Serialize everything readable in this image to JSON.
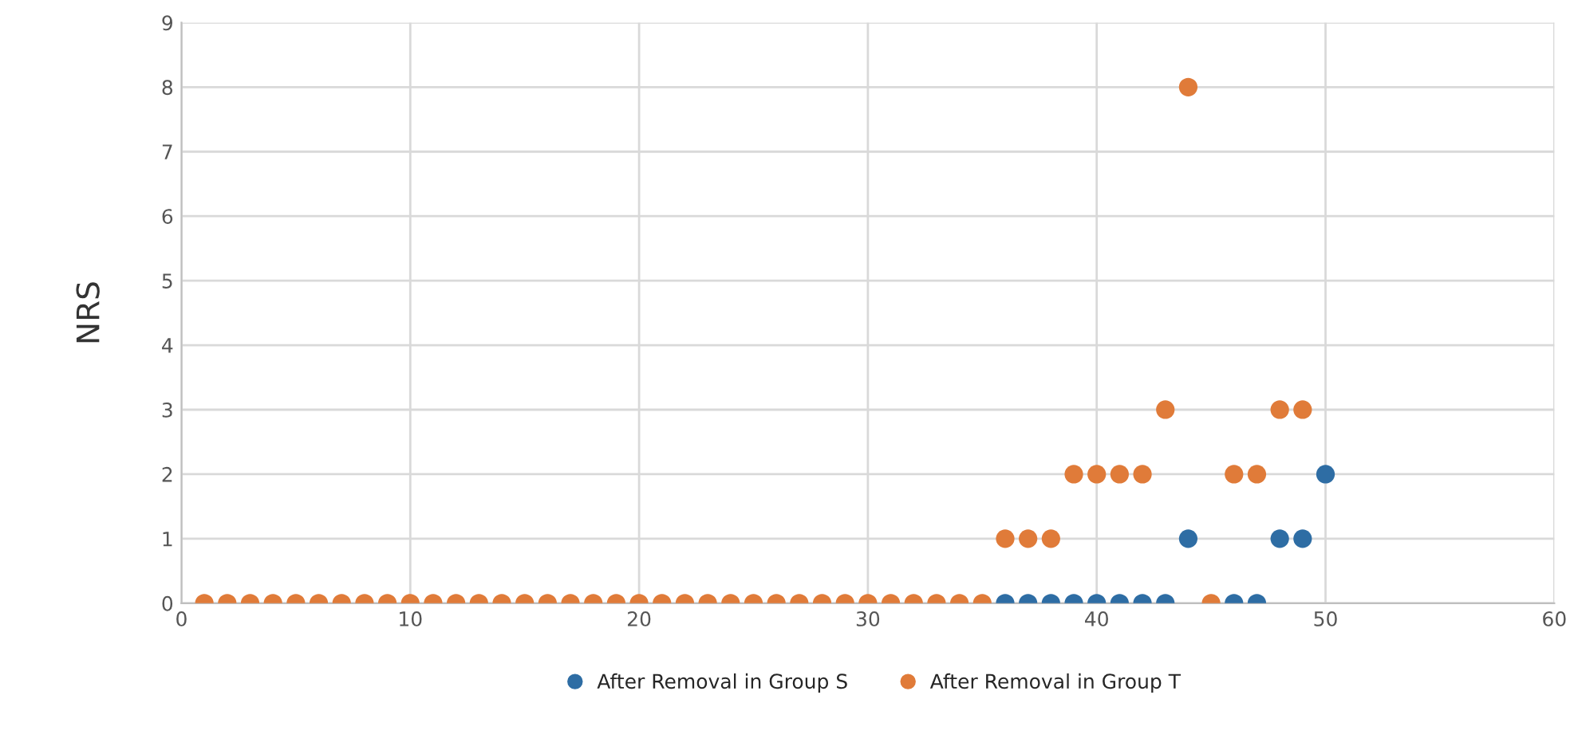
{
  "chart_data": {
    "type": "scatter",
    "ylabel": "NRS",
    "xlim": [
      0,
      60
    ],
    "xticks": [
      0,
      10,
      20,
      30,
      40,
      50,
      60
    ],
    "ylim": [
      0,
      9
    ],
    "yticks": [
      0,
      1,
      2,
      3,
      4,
      5,
      6,
      7,
      8,
      9
    ],
    "grid": true,
    "legend": "bottom",
    "marker": "circle",
    "series": [
      {
        "name": "After Removal in Group S",
        "color": "#2e6da4",
        "x": [
          36,
          37,
          38,
          39,
          40,
          41,
          42,
          43,
          44,
          46,
          47,
          48,
          49,
          50
        ],
        "values": [
          0,
          0,
          0,
          0,
          0,
          0,
          0,
          0,
          1,
          0,
          0,
          1,
          1,
          2
        ]
      },
      {
        "name": "After Removal in Group T",
        "color": "#e07b39",
        "x": [
          1,
          2,
          3,
          4,
          5,
          6,
          7,
          8,
          9,
          10,
          11,
          12,
          13,
          14,
          15,
          16,
          17,
          18,
          19,
          20,
          21,
          22,
          23,
          24,
          25,
          26,
          27,
          28,
          29,
          30,
          31,
          32,
          33,
          34,
          35,
          36,
          37,
          38,
          39,
          40,
          41,
          42,
          43,
          44,
          45,
          46,
          47,
          48,
          49
        ],
        "values": [
          0,
          0,
          0,
          0,
          0,
          0,
          0,
          0,
          0,
          0,
          0,
          0,
          0,
          0,
          0,
          0,
          0,
          0,
          0,
          0,
          0,
          0,
          0,
          0,
          0,
          0,
          0,
          0,
          0,
          0,
          0,
          0,
          0,
          0,
          0,
          1,
          1,
          1,
          2,
          2,
          2,
          2,
          3,
          8,
          0,
          2,
          2,
          3,
          3
        ]
      }
    ]
  }
}
